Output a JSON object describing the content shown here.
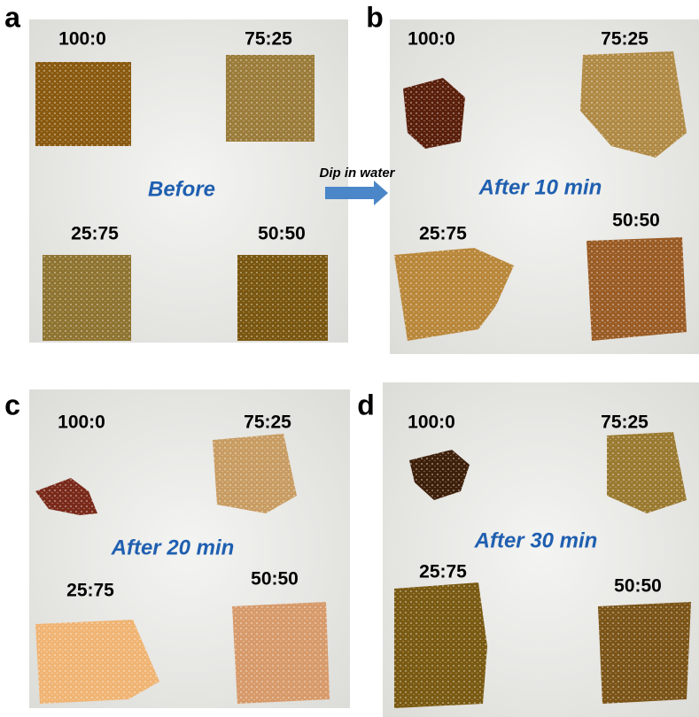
{
  "arrow_label": "Dip in water",
  "panels": [
    {
      "letter": "a",
      "stage": "Before",
      "samples": [
        "100:0",
        "75:25",
        "25:75",
        "50:50"
      ]
    },
    {
      "letter": "b",
      "stage": "After 10 min",
      "samples": [
        "100:0",
        "75:25",
        "25:75",
        "50:50"
      ]
    },
    {
      "letter": "c",
      "stage": "After 20 min",
      "samples": [
        "100:0",
        "75:25",
        "25:75",
        "50:50"
      ]
    },
    {
      "letter": "d",
      "stage": "After 30 min",
      "samples": [
        "100:0",
        "75:25",
        "25:75",
        "50:50"
      ]
    }
  ]
}
